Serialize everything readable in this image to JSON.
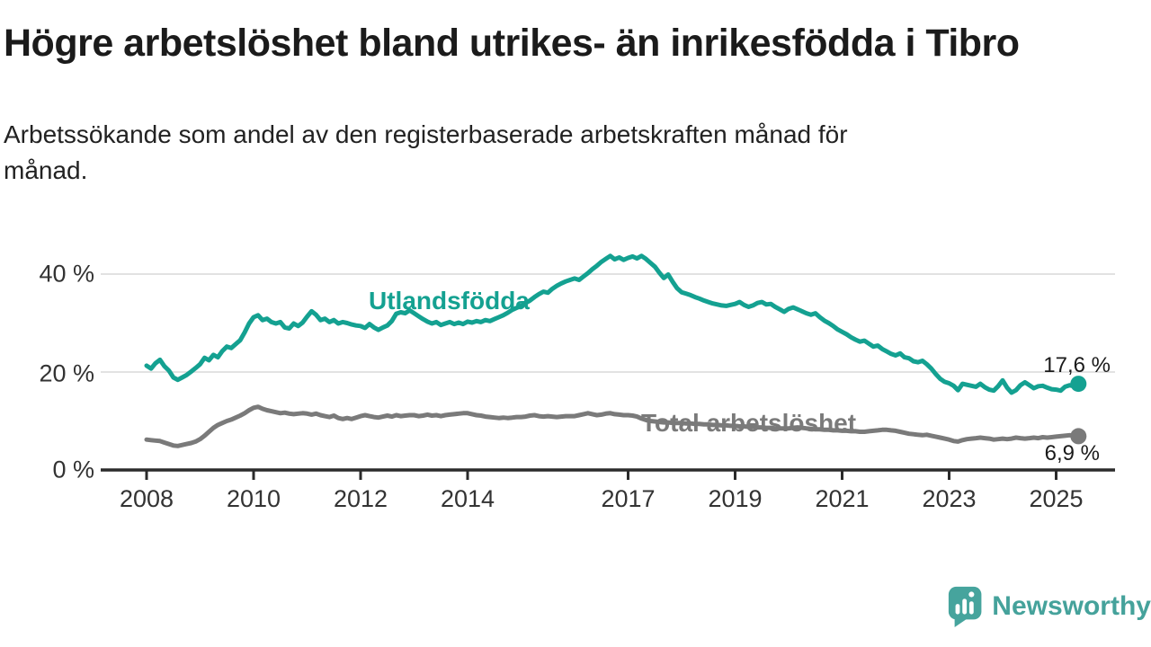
{
  "header": {
    "title": "Högre arbetslöshet bland utrikes- än inrikesfödda i Tibro",
    "subtitle": "Arbetssökande som andel av den registerbaserade arbetskraften månad för\nmånad."
  },
  "branding": {
    "logo_text": "Newsworthy",
    "logo_color": "#45a29b"
  },
  "chart_data": {
    "type": "line",
    "unit": "%",
    "cadence": "monthly",
    "x_start_year": 2008,
    "x_end_year": 2025.42,
    "ylim": [
      0,
      47
    ],
    "grid": "horizontal-only",
    "legend_position": "inline-labels",
    "axis_color": "#2b2b2b",
    "grid_color": "#d9d9d9",
    "x_ticks": [
      {
        "year": 2008,
        "label": "2008"
      },
      {
        "year": 2010,
        "label": "2010"
      },
      {
        "year": 2012,
        "label": "2012"
      },
      {
        "year": 2014,
        "label": "2014"
      },
      {
        "year": 2017,
        "label": "2017"
      },
      {
        "year": 2019,
        "label": "2019"
      },
      {
        "year": 2021,
        "label": "2021"
      },
      {
        "year": 2023,
        "label": "2023"
      },
      {
        "year": 2025,
        "label": "2025"
      }
    ],
    "y_ticks": [
      {
        "value": 40,
        "label": "40 %"
      },
      {
        "value": 20,
        "label": "20 %"
      },
      {
        "value": 0,
        "label": "0 %"
      }
    ],
    "series": [
      {
        "name": "Utlandsfödda",
        "color": "#14a191",
        "end_label": "17,6 %",
        "last_value": 17.6,
        "values": [
          21.3,
          20.7,
          21.8,
          22.5,
          21.2,
          20.3,
          18.9,
          18.4,
          18.9,
          19.4,
          20.1,
          20.8,
          21.6,
          22.9,
          22.4,
          23.5,
          23.0,
          24.3,
          25.2,
          24.9,
          25.7,
          26.5,
          28.1,
          29.9,
          31.2,
          31.6,
          30.6,
          30.9,
          30.2,
          29.9,
          30.2,
          29.1,
          28.9,
          29.9,
          29.4,
          30.1,
          31.3,
          32.4,
          31.7,
          30.6,
          30.9,
          30.2,
          30.6,
          29.9,
          30.2,
          30.0,
          29.7,
          29.5,
          29.4,
          29.0,
          29.8,
          29.1,
          28.6,
          29.1,
          29.5,
          30.4,
          31.9,
          32.2,
          32.0,
          32.6,
          32.0,
          31.4,
          30.8,
          30.3,
          29.9,
          30.2,
          29.6,
          29.9,
          30.2,
          29.8,
          30.1,
          29.8,
          30.3,
          30.1,
          30.4,
          30.2,
          30.6,
          30.4,
          30.8,
          31.2,
          31.6,
          32.1,
          32.7,
          33.1,
          33.5,
          34.1,
          34.6,
          35.3,
          35.9,
          36.4,
          36.2,
          37.0,
          37.6,
          38.1,
          38.5,
          38.8,
          39.1,
          38.8,
          39.5,
          40.2,
          41.0,
          41.7,
          42.5,
          43.1,
          43.7,
          43.0,
          43.4,
          42.9,
          43.3,
          43.6,
          43.2,
          43.7,
          43.1,
          42.3,
          41.5,
          40.3,
          39.2,
          39.9,
          38.4,
          37.1,
          36.3,
          36.0,
          35.7,
          35.3,
          35.0,
          34.6,
          34.3,
          34.0,
          33.8,
          33.6,
          33.5,
          33.7,
          33.9,
          34.3,
          33.7,
          33.3,
          33.6,
          34.1,
          34.3,
          33.8,
          33.9,
          33.3,
          32.8,
          32.3,
          32.9,
          33.2,
          32.8,
          32.4,
          32.0,
          31.7,
          32.0,
          31.2,
          30.5,
          30.0,
          29.4,
          28.7,
          28.2,
          27.7,
          27.1,
          26.6,
          26.2,
          26.4,
          25.8,
          25.2,
          25.4,
          24.7,
          24.2,
          23.7,
          23.4,
          23.8,
          23.0,
          22.8,
          22.2,
          22.0,
          22.3,
          21.6,
          20.7,
          19.6,
          18.6,
          18.0,
          17.7,
          17.2,
          16.3,
          17.6,
          17.4,
          17.2,
          17.0,
          17.6,
          16.9,
          16.4,
          16.2,
          17.1,
          18.3,
          16.8,
          15.8,
          16.3,
          17.3,
          17.9,
          17.3,
          16.7,
          17.1,
          17.2,
          16.8,
          16.5,
          16.4,
          16.2,
          17.0,
          17.3,
          17.1,
          17.6
        ]
      },
      {
        "name": "Total arbetslöshet",
        "color": "#7a7a7a",
        "end_label": "6,9 %",
        "last_value": 6.9,
        "values": [
          6.2,
          6.1,
          6.0,
          5.9,
          5.6,
          5.3,
          5.0,
          4.9,
          5.1,
          5.3,
          5.5,
          5.8,
          6.3,
          7.0,
          7.8,
          8.6,
          9.2,
          9.6,
          10.0,
          10.3,
          10.7,
          11.1,
          11.6,
          12.2,
          12.7,
          12.9,
          12.5,
          12.2,
          12.0,
          11.8,
          11.6,
          11.7,
          11.5,
          11.4,
          11.5,
          11.6,
          11.5,
          11.3,
          11.5,
          11.2,
          11.0,
          10.8,
          11.1,
          10.6,
          10.4,
          10.6,
          10.4,
          10.7,
          11.0,
          11.2,
          11.0,
          10.8,
          10.7,
          10.9,
          11.1,
          10.9,
          11.2,
          11.0,
          11.1,
          11.2,
          11.2,
          11.0,
          11.1,
          11.3,
          11.1,
          11.2,
          11.0,
          11.2,
          11.3,
          11.4,
          11.5,
          11.6,
          11.6,
          11.4,
          11.2,
          11.1,
          10.9,
          10.8,
          10.7,
          10.6,
          10.7,
          10.6,
          10.7,
          10.8,
          10.8,
          10.9,
          11.1,
          11.2,
          11.0,
          10.9,
          11.0,
          10.9,
          10.8,
          10.9,
          11.0,
          11.0,
          11.0,
          11.2,
          11.4,
          11.6,
          11.4,
          11.2,
          11.3,
          11.5,
          11.6,
          11.4,
          11.3,
          11.2,
          11.2,
          11.1,
          10.9,
          10.5,
          10.2,
          10.0,
          9.9,
          9.8,
          9.7,
          9.7,
          9.6,
          9.6,
          9.6,
          9.5,
          9.5,
          9.4,
          9.4,
          9.3,
          9.3,
          9.2,
          9.2,
          9.1,
          9.1,
          9.0,
          9.0,
          8.9,
          8.9,
          8.8,
          8.8,
          8.7,
          8.7,
          8.6,
          8.6,
          8.5,
          8.5,
          8.5,
          8.5,
          8.6,
          8.7,
          8.6,
          8.5,
          8.4,
          8.3,
          8.3,
          8.2,
          8.2,
          8.1,
          8.1,
          8.0,
          8.0,
          7.9,
          7.9,
          7.8,
          7.8,
          7.9,
          8.0,
          8.1,
          8.2,
          8.2,
          8.1,
          8.0,
          7.8,
          7.6,
          7.4,
          7.3,
          7.2,
          7.1,
          7.2,
          7.0,
          6.8,
          6.6,
          6.4,
          6.2,
          5.9,
          5.8,
          6.1,
          6.3,
          6.4,
          6.5,
          6.6,
          6.5,
          6.4,
          6.2,
          6.3,
          6.4,
          6.3,
          6.4,
          6.6,
          6.5,
          6.4,
          6.5,
          6.6,
          6.5,
          6.7,
          6.6,
          6.7,
          6.8,
          6.9,
          7.0,
          7.1,
          7.0,
          6.9
        ]
      }
    ]
  }
}
